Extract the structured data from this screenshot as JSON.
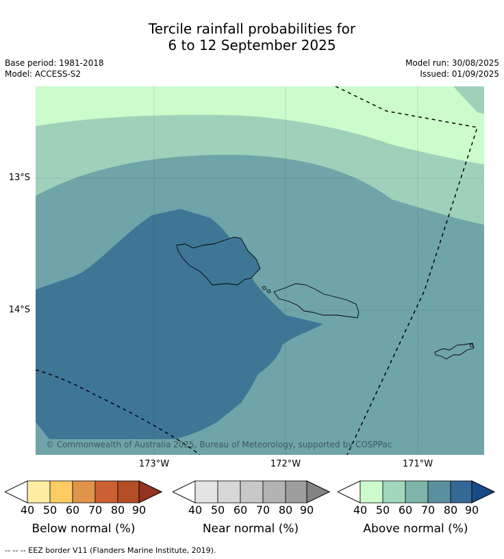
{
  "title_line1": "Tercile rainfall probabilities for",
  "title_line2": "6 to 12 September 2025",
  "meta_left": {
    "line1": "Base period: 1981-2018",
    "line2": "Model: ACCESS-S2"
  },
  "meta_right": {
    "line1": "Model run: 30/08/2025",
    "line2": "Issued: 01/09/2025"
  },
  "lat_labels": [
    "13°S",
    "14°S"
  ],
  "lon_labels": [
    "173°W",
    "172°W",
    "171°W"
  ],
  "copyright": "© Commonwealth of Australia 2025, Bureau of Meteorology, supported by COSPPac",
  "colorbars": [
    {
      "title": "Below normal (%)",
      "ticks": [
        "40",
        "50",
        "60",
        "70",
        "80",
        "90"
      ],
      "colors": [
        "#ffeea1",
        "#fecb65",
        "#e0944a",
        "#cc6033",
        "#b34d27",
        "#933420"
      ]
    },
    {
      "title": "Near normal (%)",
      "ticks": [
        "40",
        "50",
        "60",
        "70",
        "80",
        "90"
      ],
      "colors": [
        "#e4e4e4",
        "#d7d7d7",
        "#c8c8c8",
        "#b3b3b3",
        "#9e9e9e",
        "#838383"
      ]
    },
    {
      "title": "Above normal (%)",
      "ticks": [
        "40",
        "50",
        "60",
        "70",
        "80",
        "90"
      ],
      "colors": [
        "#ccfccb",
        "#a1d7bb",
        "#7eb5ab",
        "#5a8fa0",
        "#346896",
        "#174b87"
      ]
    }
  ],
  "map_colors": {
    "above_50": "#ccfccb",
    "above_60": "#9fd1ba",
    "above_70": "#6fa4a8",
    "above_80": "#3f7696"
  },
  "footnote": "-- -- -- EEZ border V11 (Flanders Marine Institute, 2019)."
}
